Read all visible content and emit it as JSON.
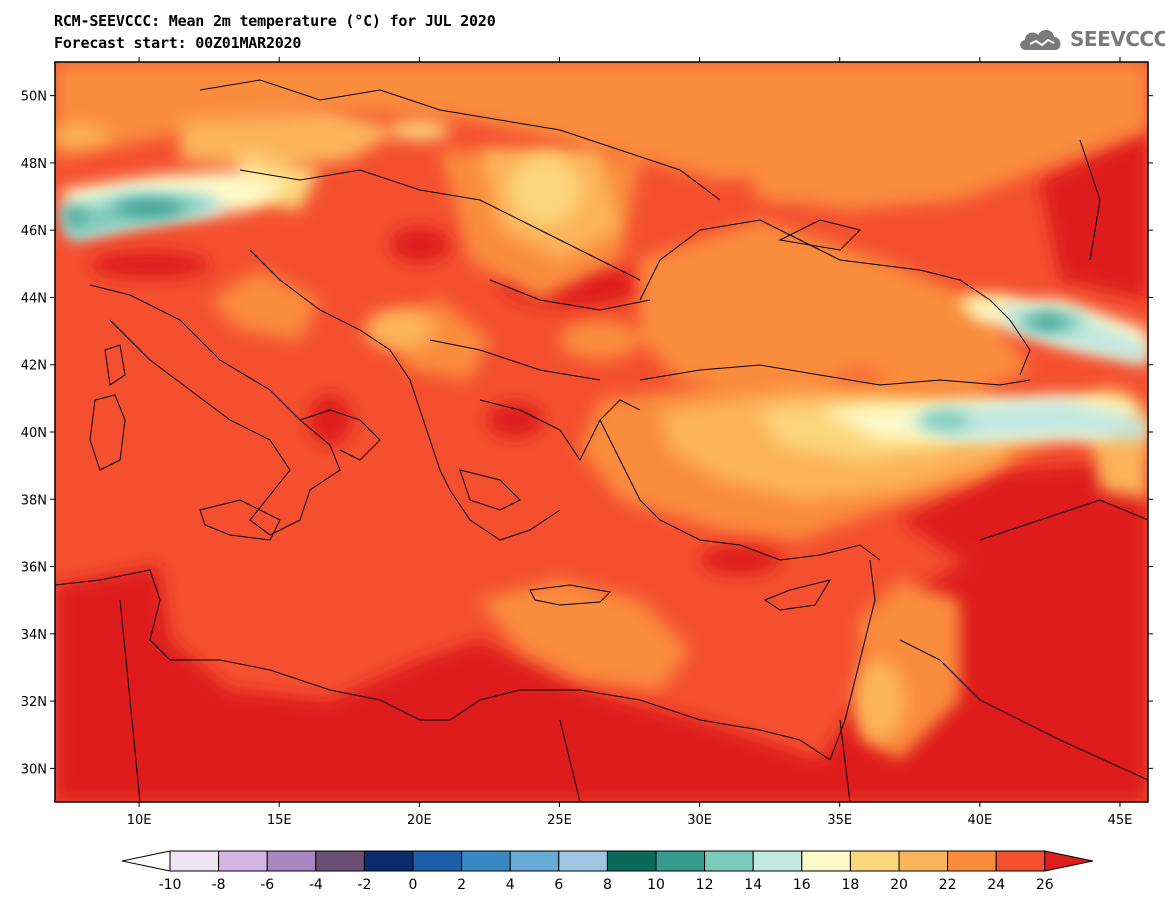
{
  "header": {
    "title": "RCM-SEEVCCC: Mean 2m temperature (°C) for JUL 2020",
    "subtitle": "Forecast start: 00Z01MAR2020",
    "logo_text": "SEEVCCC"
  },
  "map": {
    "lon_range": [
      7,
      46
    ],
    "lat_range": [
      29,
      51
    ],
    "lon_ticks": [
      {
        "value": 10,
        "label": "10E"
      },
      {
        "value": 15,
        "label": "15E"
      },
      {
        "value": 20,
        "label": "20E"
      },
      {
        "value": 25,
        "label": "25E"
      },
      {
        "value": 30,
        "label": "30E"
      },
      {
        "value": 35,
        "label": "35E"
      },
      {
        "value": 40,
        "label": "40E"
      },
      {
        "value": 45,
        "label": "45E"
      }
    ],
    "lat_ticks": [
      {
        "value": 30,
        "label": "30N"
      },
      {
        "value": 32,
        "label": "32N"
      },
      {
        "value": 34,
        "label": "34N"
      },
      {
        "value": 36,
        "label": "36N"
      },
      {
        "value": 38,
        "label": "38N"
      },
      {
        "value": 40,
        "label": "40N"
      },
      {
        "value": 42,
        "label": "42N"
      },
      {
        "value": 44,
        "label": "44N"
      },
      {
        "value": 46,
        "label": "46N"
      },
      {
        "value": 48,
        "label": "48N"
      },
      {
        "value": 50,
        "label": "50N"
      }
    ]
  },
  "colorbar": {
    "labels": [
      "-10",
      "-8",
      "-6",
      "-4",
      "-2",
      "0",
      "2",
      "4",
      "6",
      "8",
      "10",
      "12",
      "14",
      "16",
      "18",
      "20",
      "22",
      "24",
      "26"
    ],
    "colors": [
      "#f0e4f4",
      "#d4b4e4",
      "#a886c2",
      "#6a4e74",
      "#0a2c6e",
      "#1f5ea8",
      "#3a88c2",
      "#68aad6",
      "#9cc6e2",
      "#0a6a5a",
      "#369a8e",
      "#7ccabc",
      "#c2e8e2",
      "#fefac8",
      "#fcd67c",
      "#fcb45a",
      "#fa8c3c",
      "#f45030"
    ],
    "under_color": "#ffffff",
    "over_color": "#de1e1e"
  }
}
